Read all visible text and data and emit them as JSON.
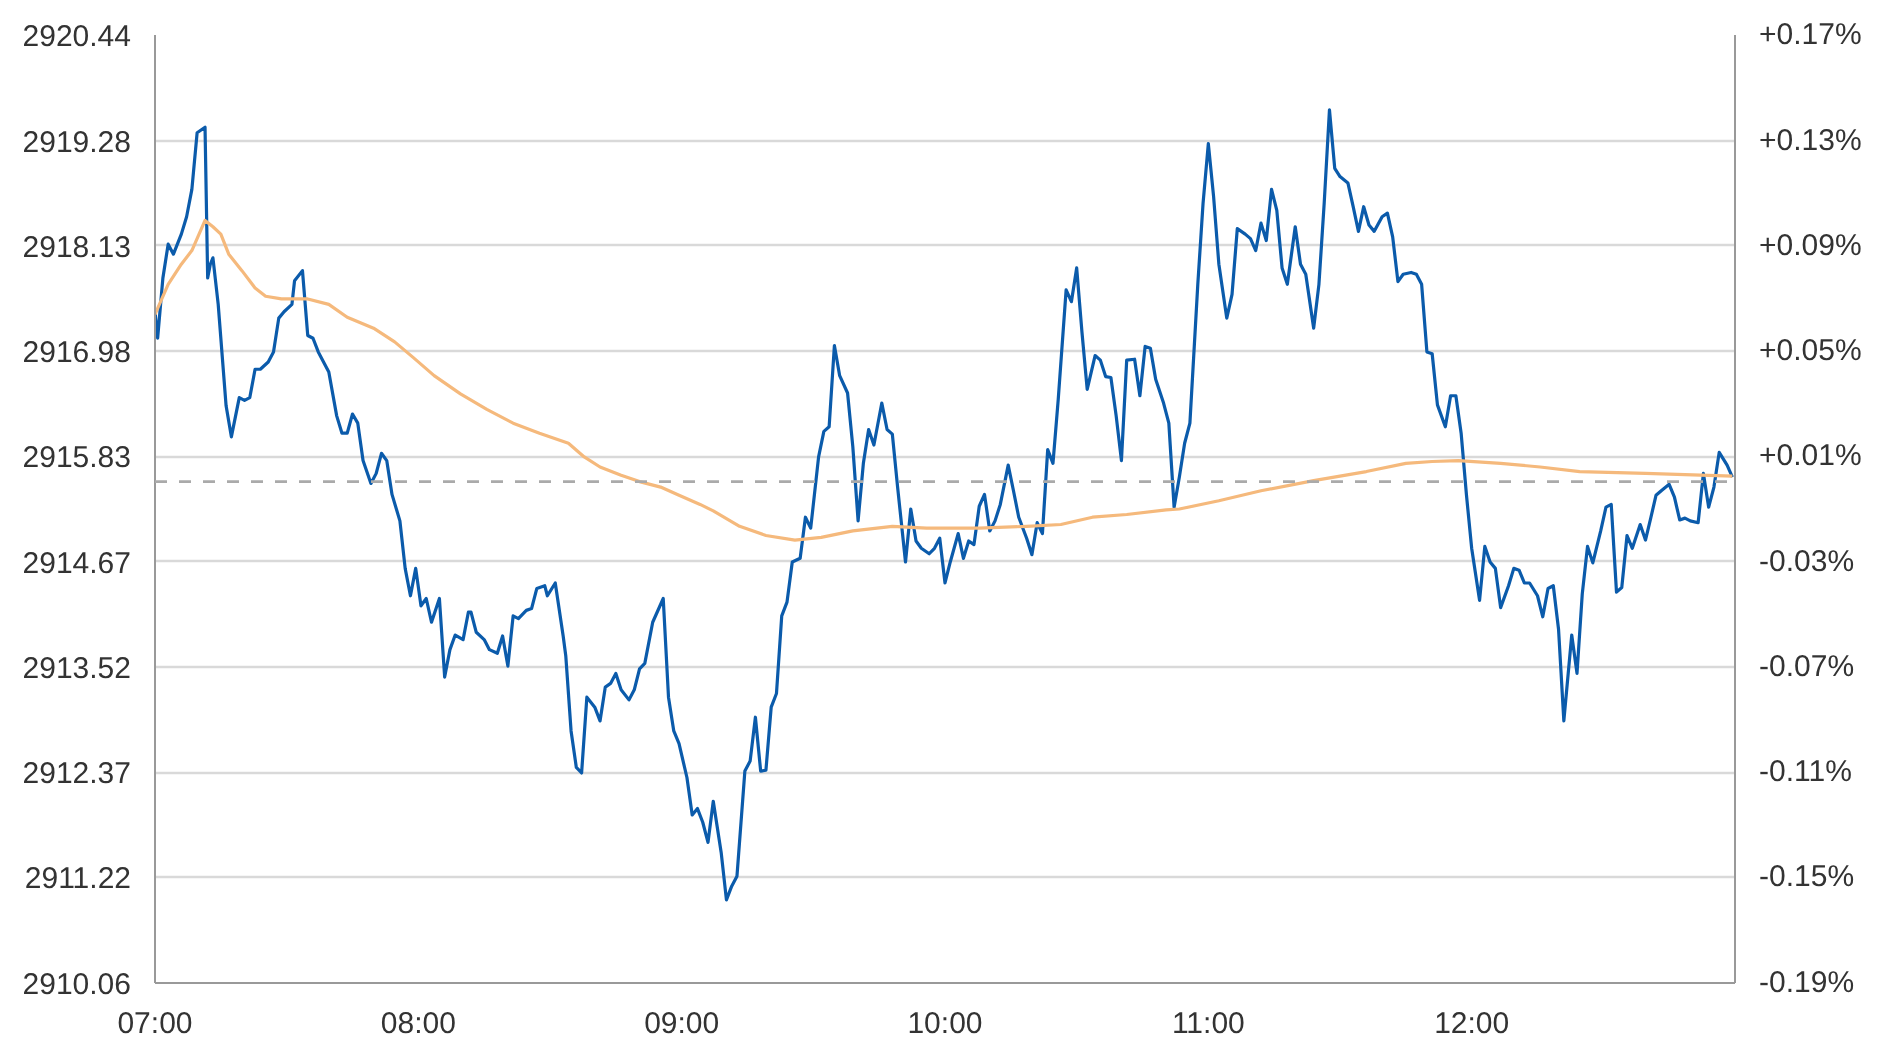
{
  "chart_data": {
    "type": "line",
    "xlim": [
      7,
      13
    ],
    "ylim": [
      2910.06,
      2920.44
    ],
    "xticks": [
      {
        "value": 7,
        "label": "07:00"
      },
      {
        "value": 8,
        "label": "08:00"
      },
      {
        "value": 9,
        "label": "09:00"
      },
      {
        "value": 10,
        "label": "10:00"
      },
      {
        "value": 11,
        "label": "11:00"
      },
      {
        "value": 12,
        "label": "12:00"
      }
    ],
    "yticks": [
      2910.06,
      2911.22,
      2912.37,
      2913.52,
      2914.67,
      2915.83,
      2916.98,
      2918.13,
      2919.28,
      2920.44
    ],
    "y2lim": [
      -0.1883,
      0.1677
    ],
    "y2ticks": [
      {
        "value": -0.1883,
        "label": "-0.19%"
      },
      {
        "value": -0.1485,
        "label": "-0.15%"
      },
      {
        "value": -0.1091,
        "label": "-0.11%"
      },
      {
        "value": -0.0696,
        "label": "-0.07%"
      },
      {
        "value": -0.0302,
        "label": "-0.03%"
      },
      {
        "value": 0.0096,
        "label": "+0.01%"
      },
      {
        "value": 0.049,
        "label": "+0.05%"
      },
      {
        "value": 0.0885,
        "label": "+0.09%"
      },
      {
        "value": 0.1279,
        "label": "+0.13%"
      },
      {
        "value": 0.1677,
        "label": "+0.17%"
      }
    ],
    "grid": "y",
    "line_style": "solid",
    "ref_lines": [
      {
        "axis": "y",
        "value": 2915.55,
        "color": "#aaaaaa",
        "line_style": "dashed"
      }
    ],
    "series": [
      {
        "color": "#0b5bab",
        "x": [
          7.0,
          7.01,
          7.03,
          7.05,
          7.07,
          7.1,
          7.12,
          7.14,
          7.16,
          7.19,
          7.2,
          7.21,
          7.22,
          7.24,
          7.27,
          7.29,
          7.32,
          7.34,
          7.36,
          7.38,
          7.4,
          7.43,
          7.45,
          7.47,
          7.49,
          7.52,
          7.53,
          7.56,
          7.58,
          7.6,
          7.62,
          7.66,
          7.69,
          7.71,
          7.73,
          7.75,
          7.77,
          7.79,
          7.82,
          7.84,
          7.86,
          7.88,
          7.9,
          7.93,
          7.95,
          7.97,
          7.99,
          8.01,
          8.03,
          8.05,
          8.08,
          8.1,
          8.12,
          8.14,
          8.17,
          8.19,
          8.2,
          8.22,
          8.25,
          8.27,
          8.3,
          8.32,
          8.34,
          8.36,
          8.38,
          8.41,
          8.43,
          8.45,
          8.48,
          8.49,
          8.52,
          8.55,
          8.56,
          8.58,
          8.6,
          8.62,
          8.64,
          8.67,
          8.69,
          8.71,
          8.73,
          8.75,
          8.77,
          8.8,
          8.82,
          8.84,
          8.86,
          8.89,
          8.93,
          8.95,
          8.97,
          8.99,
          9.02,
          9.04,
          9.06,
          9.08,
          9.1,
          9.12,
          9.15,
          9.17,
          9.19,
          9.21,
          9.24,
          9.26,
          9.28,
          9.3,
          9.32,
          9.34,
          9.36,
          9.38,
          9.4,
          9.42,
          9.45,
          9.47,
          9.49,
          9.52,
          9.54,
          9.56,
          9.58,
          9.6,
          9.63,
          9.65,
          9.67,
          9.69,
          9.71,
          9.73,
          9.76,
          9.78,
          9.8,
          9.82,
          9.85,
          9.87,
          9.89,
          9.91,
          9.94,
          9.96,
          9.98,
          10.0,
          10.02,
          10.05,
          10.07,
          10.09,
          10.11,
          10.13,
          10.15,
          10.17,
          10.19,
          10.21,
          10.24,
          10.26,
          10.28,
          10.31,
          10.33,
          10.35,
          10.37,
          10.39,
          10.41,
          10.43,
          10.46,
          10.48,
          10.5,
          10.52,
          10.54,
          10.57,
          10.59,
          10.61,
          10.63,
          10.65,
          10.67,
          10.69,
          10.72,
          10.74,
          10.76,
          10.78,
          10.8,
          10.83,
          10.85,
          10.87,
          10.89,
          10.91,
          10.93,
          10.96,
          10.98,
          11.0,
          11.02,
          11.04,
          11.07,
          11.09,
          11.11,
          11.14,
          11.16,
          11.18,
          11.2,
          11.22,
          11.24,
          11.26,
          11.28,
          11.3,
          11.33,
          11.35,
          11.37,
          11.4,
          11.42,
          11.44,
          11.46,
          11.48,
          11.5,
          11.53,
          11.55,
          11.57,
          11.59,
          11.61,
          11.63,
          11.66,
          11.68,
          11.7,
          11.72,
          11.74,
          11.77,
          11.79,
          11.81,
          11.83,
          11.85,
          11.87,
          11.9,
          11.92,
          11.94,
          11.96,
          11.98,
          12.0,
          12.03,
          12.05,
          12.07,
          12.09,
          12.11,
          12.14,
          12.16,
          12.18,
          12.2,
          12.22,
          12.25,
          12.27,
          12.29,
          12.31,
          12.33,
          12.35,
          12.38,
          12.4,
          12.42,
          12.44,
          12.46,
          12.49,
          12.51,
          12.53,
          12.55,
          12.57,
          12.59,
          12.61,
          12.64,
          12.66,
          12.68,
          12.7,
          12.72,
          12.75,
          12.77,
          12.79,
          12.81,
          12.83,
          12.86,
          12.88,
          12.9,
          12.92,
          12.94,
          12.97,
          12.99
        ],
        "values": [
          2917.41,
          2917.12,
          2917.78,
          2918.15,
          2918.04,
          2918.26,
          2918.45,
          2918.75,
          2919.37,
          2919.43,
          2917.78,
          2917.93,
          2918.0,
          2917.49,
          2916.38,
          2916.04,
          2916.47,
          2916.44,
          2916.47,
          2916.78,
          2916.78,
          2916.86,
          2916.97,
          2917.34,
          2917.41,
          2917.49,
          2917.75,
          2917.86,
          2917.15,
          2917.12,
          2916.97,
          2916.75,
          2916.27,
          2916.08,
          2916.08,
          2916.29,
          2916.19,
          2915.78,
          2915.53,
          2915.64,
          2915.86,
          2915.78,
          2915.41,
          2915.12,
          2914.6,
          2914.3,
          2914.6,
          2914.19,
          2914.27,
          2914.01,
          2914.27,
          2913.41,
          2913.71,
          2913.87,
          2913.82,
          2914.12,
          2914.12,
          2913.9,
          2913.82,
          2913.71,
          2913.67,
          2913.86,
          2913.53,
          2914.08,
          2914.05,
          2914.14,
          2914.16,
          2914.38,
          2914.41,
          2914.3,
          2914.44,
          2913.86,
          2913.64,
          2912.82,
          2912.42,
          2912.36,
          2913.19,
          2913.08,
          2912.93,
          2913.3,
          2913.34,
          2913.45,
          2913.27,
          2913.16,
          2913.27,
          2913.5,
          2913.56,
          2914.01,
          2914.27,
          2913.19,
          2912.82,
          2912.68,
          2912.31,
          2911.9,
          2911.97,
          2911.82,
          2911.6,
          2912.05,
          2911.49,
          2910.97,
          2911.12,
          2911.23,
          2912.38,
          2912.49,
          2912.97,
          2912.38,
          2912.39,
          2913.08,
          2913.23,
          2914.08,
          2914.23,
          2914.67,
          2914.71,
          2915.16,
          2915.04,
          2915.82,
          2916.1,
          2916.15,
          2917.04,
          2916.71,
          2916.52,
          2915.93,
          2915.12,
          2915.75,
          2916.12,
          2915.95,
          2916.41,
          2916.12,
          2916.07,
          2915.49,
          2914.67,
          2915.25,
          2914.9,
          2914.82,
          2914.76,
          2914.82,
          2914.93,
          2914.44,
          2914.67,
          2914.98,
          2914.71,
          2914.9,
          2914.86,
          2915.28,
          2915.41,
          2915.01,
          2915.12,
          2915.3,
          2915.73,
          2915.45,
          2915.16,
          2914.93,
          2914.75,
          2915.1,
          2914.98,
          2915.9,
          2915.75,
          2916.45,
          2917.65,
          2917.52,
          2917.89,
          2917.19,
          2916.56,
          2916.93,
          2916.88,
          2916.7,
          2916.69,
          2916.27,
          2915.78,
          2916.88,
          2916.89,
          2916.49,
          2917.03,
          2917.01,
          2916.67,
          2916.41,
          2916.19,
          2915.27,
          2915.6,
          2915.97,
          2916.19,
          2917.71,
          2918.6,
          2919.25,
          2918.67,
          2917.93,
          2917.34,
          2917.6,
          2918.32,
          2918.26,
          2918.21,
          2918.08,
          2918.38,
          2918.19,
          2918.75,
          2918.52,
          2917.89,
          2917.71,
          2918.34,
          2917.93,
          2917.82,
          2917.23,
          2917.71,
          2918.6,
          2919.62,
          2918.98,
          2918.89,
          2918.82,
          2918.56,
          2918.29,
          2918.56,
          2918.36,
          2918.29,
          2918.45,
          2918.49,
          2918.23,
          2917.74,
          2917.82,
          2917.84,
          2917.82,
          2917.71,
          2916.97,
          2916.95,
          2916.39,
          2916.15,
          2916.49,
          2916.49,
          2916.08,
          2915.41,
          2914.82,
          2914.25,
          2914.84,
          2914.67,
          2914.6,
          2914.17,
          2914.41,
          2914.6,
          2914.58,
          2914.44,
          2914.44,
          2914.3,
          2914.07,
          2914.38,
          2914.41,
          2913.93,
          2912.93,
          2913.87,
          2913.45,
          2914.32,
          2914.84,
          2914.66,
          2915.01,
          2915.27,
          2915.3,
          2914.34,
          2914.39,
          2914.96,
          2914.82,
          2915.08,
          2914.91,
          2915.15,
          2915.4,
          2915.45,
          2915.52,
          2915.38,
          2915.13,
          2915.15,
          2915.12,
          2915.1,
          2915.64,
          2915.27,
          2915.49,
          2915.87,
          2915.73,
          2915.6
        ]
      },
      {
        "color": "#f5b97c",
        "x": [
          7.0,
          7.05,
          7.1,
          7.14,
          7.19,
          7.22,
          7.25,
          7.28,
          7.33,
          7.38,
          7.42,
          7.48,
          7.58,
          7.66,
          7.73,
          7.83,
          7.91,
          7.98,
          8.06,
          8.16,
          8.26,
          8.36,
          8.46,
          8.57,
          8.63,
          8.69,
          8.77,
          8.84,
          8.92,
          8.99,
          9.07,
          9.12,
          9.22,
          9.32,
          9.43,
          9.53,
          9.65,
          9.8,
          9.93,
          10.13,
          10.31,
          10.44,
          10.56,
          10.69,
          10.84,
          10.89,
          11.04,
          11.2,
          11.4,
          11.6,
          11.75,
          11.85,
          11.95,
          12.11,
          12.26,
          12.41,
          12.66,
          12.87,
          12.99
        ],
        "values": [
          2917.38,
          2917.71,
          2917.93,
          2918.08,
          2918.41,
          2918.34,
          2918.26,
          2918.04,
          2917.86,
          2917.67,
          2917.58,
          2917.55,
          2917.55,
          2917.49,
          2917.35,
          2917.23,
          2917.08,
          2916.91,
          2916.71,
          2916.51,
          2916.34,
          2916.19,
          2916.08,
          2915.97,
          2915.82,
          2915.71,
          2915.62,
          2915.55,
          2915.49,
          2915.4,
          2915.3,
          2915.23,
          2915.06,
          2914.96,
          2914.91,
          2914.94,
          2915.01,
          2915.06,
          2915.04,
          2915.04,
          2915.06,
          2915.08,
          2915.16,
          2915.19,
          2915.24,
          2915.25,
          2915.34,
          2915.45,
          2915.56,
          2915.66,
          2915.75,
          2915.77,
          2915.78,
          2915.75,
          2915.71,
          2915.66,
          2915.64,
          2915.62,
          2915.61
        ]
      }
    ]
  }
}
